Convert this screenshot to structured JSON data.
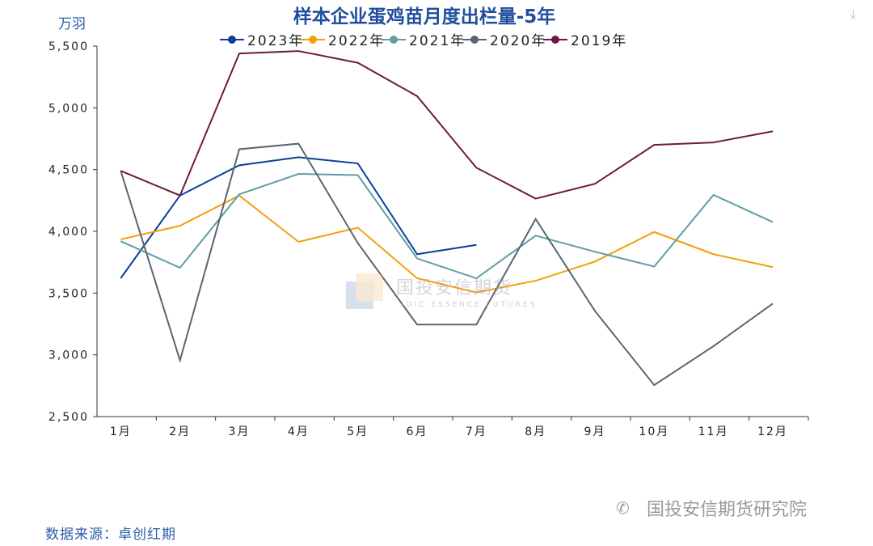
{
  "chart_data": {
    "type": "line",
    "title": "样本企业蛋鸡苗月度出栏量-5年",
    "ylabel": "万羽",
    "ylim": [
      2500,
      5500
    ],
    "yticks": [
      "2,500",
      "3,000",
      "3,500",
      "4,000",
      "4,500",
      "5,000",
      "5,500"
    ],
    "ytick_values": [
      2500,
      3000,
      3500,
      4000,
      4500,
      5000,
      5500
    ],
    "categories": [
      "1月",
      "2月",
      "3月",
      "4月",
      "5月",
      "6月",
      "7月",
      "8月",
      "9月",
      "10月",
      "11月",
      "12月"
    ],
    "legend_position": "top",
    "grid": false,
    "series": [
      {
        "name": "2023年",
        "color": "#0b3f9a",
        "values": [
          3620,
          4290,
          4535,
          4600,
          4550,
          3815,
          3890,
          null,
          null,
          null,
          null,
          null
        ]
      },
      {
        "name": "2022年",
        "color": "#f59e0b",
        "values": [
          3935,
          4045,
          4290,
          3915,
          4030,
          3620,
          3505,
          3600,
          3755,
          3995,
          3815,
          3710
        ]
      },
      {
        "name": "2021年",
        "color": "#5f9ea5",
        "values": [
          3920,
          3705,
          4300,
          4465,
          4455,
          3780,
          3620,
          3965,
          3835,
          3715,
          4295,
          4075
        ]
      },
      {
        "name": "2020年",
        "color": "#5a6570",
        "values": [
          4490,
          2955,
          4665,
          4710,
          3905,
          3245,
          3245,
          4100,
          3355,
          2755,
          3070,
          3415
        ]
      },
      {
        "name": "2019年",
        "color": "#6b1a44",
        "values": [
          4490,
          4290,
          5440,
          5460,
          5365,
          5095,
          4515,
          4265,
          4385,
          4700,
          4720,
          4810
        ]
      }
    ]
  },
  "footer": {
    "source": "数据来源：卓创红期",
    "brand": "国投安信期货研究院"
  },
  "watermark": {
    "cn": "国投安信期货",
    "en": "SDIC ESSENCE FUTURES"
  },
  "icons": {
    "download": "download-icon",
    "wechat": "wechat-icon"
  }
}
